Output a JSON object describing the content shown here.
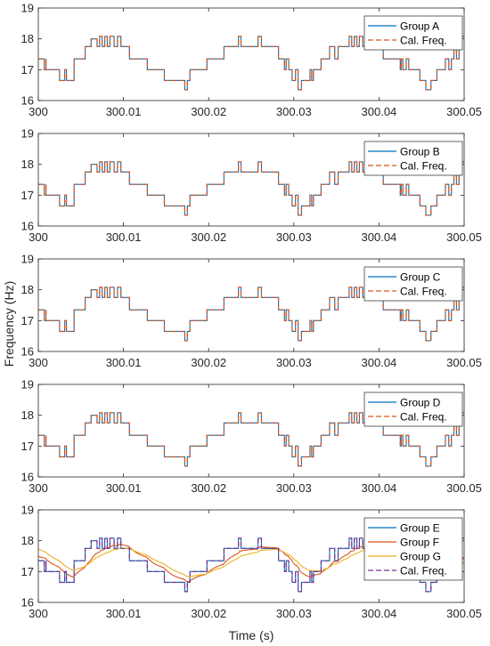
{
  "figure": {
    "ylabel": "Frequency (Hz)",
    "xlabel": "Time (s)"
  },
  "colors": {
    "blue": "#0072bd",
    "red": "#d95319",
    "yellow": "#edb120",
    "purple": "#7e2f8e"
  },
  "chart_data": [
    {
      "type": "line",
      "xlim": [
        300,
        300.05
      ],
      "ylim": [
        16,
        19
      ],
      "x_ticks": [
        300,
        300.01,
        300.02,
        300.03,
        300.04,
        300.05
      ],
      "x_tick_labels": [
        "300",
        "300.01",
        "300.02",
        "300.03",
        "300.04",
        "300.05"
      ],
      "y_ticks": [
        16,
        17,
        18,
        19
      ],
      "legend_position": "top-right",
      "series": [
        {
          "name": "Group A",
          "style": "solid",
          "color": "blue",
          "kind": "step"
        },
        {
          "name": "Cal. Freq.",
          "style": "dashed",
          "color": "red",
          "kind": "step"
        }
      ]
    },
    {
      "type": "line",
      "xlim": [
        300,
        300.05
      ],
      "ylim": [
        16,
        19
      ],
      "x_ticks": [
        300,
        300.01,
        300.02,
        300.03,
        300.04,
        300.05
      ],
      "x_tick_labels": [
        "300",
        "300.01",
        "300.02",
        "300.03",
        "300.04",
        "300.05"
      ],
      "y_ticks": [
        16,
        17,
        18,
        19
      ],
      "legend_position": "top-right",
      "series": [
        {
          "name": "Group B",
          "style": "solid",
          "color": "blue",
          "kind": "step"
        },
        {
          "name": "Cal. Freq.",
          "style": "dashed",
          "color": "red",
          "kind": "step"
        }
      ]
    },
    {
      "type": "line",
      "xlim": [
        300,
        300.05
      ],
      "ylim": [
        16,
        19
      ],
      "x_ticks": [
        300,
        300.01,
        300.02,
        300.03,
        300.04,
        300.05
      ],
      "x_tick_labels": [
        "300",
        "300.01",
        "300.02",
        "300.03",
        "300.04",
        "300.05"
      ],
      "y_ticks": [
        16,
        17,
        18,
        19
      ],
      "legend_position": "top-right",
      "series": [
        {
          "name": "Group C",
          "style": "solid",
          "color": "blue",
          "kind": "step"
        },
        {
          "name": "Cal. Freq.",
          "style": "dashed",
          "color": "red",
          "kind": "step"
        }
      ]
    },
    {
      "type": "line",
      "xlim": [
        300,
        300.05
      ],
      "ylim": [
        16,
        19
      ],
      "x_ticks": [
        300,
        300.01,
        300.02,
        300.03,
        300.04,
        300.05
      ],
      "x_tick_labels": [
        "300",
        "300.01",
        "300.02",
        "300.03",
        "300.04",
        "300.05"
      ],
      "y_ticks": [
        16,
        17,
        18,
        19
      ],
      "legend_position": "top-right",
      "series": [
        {
          "name": "Group D",
          "style": "solid",
          "color": "blue",
          "kind": "step"
        },
        {
          "name": "Cal. Freq.",
          "style": "dashed",
          "color": "red",
          "kind": "step"
        }
      ]
    },
    {
      "type": "line",
      "xlim": [
        300,
        300.05
      ],
      "ylim": [
        16,
        19
      ],
      "x_ticks": [
        300,
        300.01,
        300.02,
        300.03,
        300.04,
        300.05
      ],
      "x_tick_labels": [
        "300",
        "300.01",
        "300.02",
        "300.03",
        "300.04",
        "300.05"
      ],
      "y_ticks": [
        16,
        17,
        18,
        19
      ],
      "legend_position": "top-right",
      "series": [
        {
          "name": "Group E",
          "style": "solid",
          "color": "blue",
          "kind": "step"
        },
        {
          "name": "Group F",
          "style": "solid",
          "color": "red",
          "kind": "smooth-lag1"
        },
        {
          "name": "Group G",
          "style": "solid",
          "color": "yellow",
          "kind": "smooth-lag2"
        },
        {
          "name": "Cal. Freq.",
          "style": "dashed",
          "color": "purple",
          "kind": "step"
        }
      ]
    }
  ],
  "signal": {
    "x_start": 300,
    "x_end": 300.05,
    "levels": [
      [
        300.0,
        17.35
      ],
      [
        300.0009,
        17.0
      ],
      [
        300.0025,
        16.65
      ],
      [
        300.0042,
        17.35
      ],
      [
        300.0055,
        17.75
      ],
      [
        300.0062,
        18.0
      ],
      [
        300.0069,
        17.75
      ],
      [
        300.0072,
        18.08
      ],
      [
        300.0075,
        17.75
      ],
      [
        300.0078,
        18.08
      ],
      [
        300.0081,
        17.75
      ],
      [
        300.0084,
        18.08
      ],
      [
        300.0089,
        17.75
      ],
      [
        300.0093,
        18.08
      ],
      [
        300.0097,
        17.75
      ],
      [
        300.0107,
        17.35
      ],
      [
        300.0128,
        17.0
      ],
      [
        300.0148,
        16.65
      ],
      [
        300.0172,
        16.35
      ],
      [
        300.0175,
        16.65
      ],
      [
        300.0178,
        17.0
      ],
      [
        300.0198,
        17.35
      ],
      [
        300.0218,
        17.75
      ],
      [
        300.0235,
        18.08
      ],
      [
        300.0238,
        17.75
      ],
      [
        300.0258,
        18.08
      ],
      [
        300.0262,
        17.75
      ],
      [
        300.0282,
        17.35
      ],
      [
        300.0289,
        17.0
      ],
      [
        300.0291,
        17.35
      ],
      [
        300.0294,
        17.0
      ],
      [
        300.0298,
        16.65
      ],
      [
        300.0302,
        17.0
      ],
      [
        300.0305,
        16.35
      ],
      [
        300.0309,
        16.65
      ],
      [
        300.0319,
        17.0
      ],
      [
        300.0332,
        17.35
      ],
      [
        300.0342,
        17.75
      ],
      [
        300.0348,
        17.35
      ],
      [
        300.0352,
        17.75
      ],
      [
        300.0365,
        18.08
      ],
      [
        300.0368,
        17.75
      ],
      [
        300.0371,
        18.08
      ],
      [
        300.0374,
        17.75
      ],
      [
        300.0377,
        18.08
      ],
      [
        300.0381,
        17.75
      ],
      [
        300.0405,
        17.35
      ],
      [
        300.0425,
        17.0
      ],
      [
        300.0432,
        17.35
      ],
      [
        300.0435,
        17.0
      ],
      [
        300.0448,
        16.65
      ],
      [
        300.0455,
        16.35
      ],
      [
        300.0461,
        16.65
      ],
      [
        300.0468,
        17.0
      ],
      [
        300.0478,
        17.35
      ],
      [
        300.0482,
        17.0
      ],
      [
        300.0485,
        17.35
      ],
      [
        300.0488,
        17.75
      ],
      [
        300.0491,
        17.35
      ],
      [
        300.0494,
        17.75
      ],
      [
        300.0497,
        18.08
      ]
    ],
    "spikes": [
      [
        300.0007,
        17.0
      ],
      [
        300.0031,
        17.0
      ],
      [
        300.0101,
        17.75
      ],
      [
        300.0243,
        17.75
      ],
      [
        300.0321,
        16.65
      ],
      [
        300.0426,
        17.35
      ],
      [
        300.0476,
        17.0
      ]
    ]
  }
}
